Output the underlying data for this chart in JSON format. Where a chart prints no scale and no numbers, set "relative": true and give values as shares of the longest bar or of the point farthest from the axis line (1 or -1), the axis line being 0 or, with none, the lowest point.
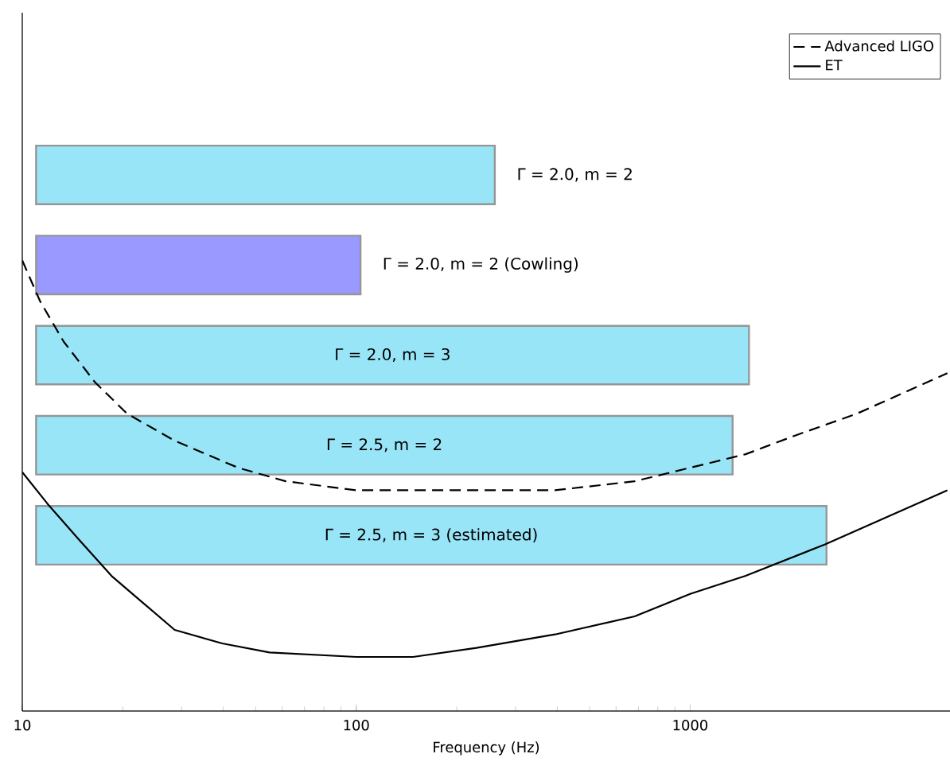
{
  "chart_data": [
    {
      "type": "bar",
      "orientation": "horizontal",
      "log": "x",
      "xlim": [
        10,
        6000
      ],
      "xticks": [
        10,
        100,
        1000
      ],
      "xlabel": "Frequency (Hz)",
      "categories": [
        "Γ = 2.0, m = 2",
        "Γ = 2.0, m = 2 (Cowling)",
        "Γ = 2.0, m = 3",
        "Γ = 2.5, m = 2",
        "Γ = 2.5, m = 3 (estimated)"
      ],
      "base": [
        11,
        11,
        11,
        11,
        11
      ],
      "values": [
        249,
        92,
        1489,
        1329,
        2549
      ],
      "colors": [
        "#99e5f8",
        "#9999ff",
        "#99e5f8",
        "#99e5f8",
        "#99e5f8"
      ]
    },
    {
      "type": "line",
      "relative": true,
      "log": "x",
      "xlim": [
        10,
        6000
      ],
      "tick_labels": false,
      "legend": "top right",
      "series": [
        {
          "name": "Advanced LIGO",
          "color": "#000000",
          "line_style": "dashed",
          "x": [
            10,
            11.3,
            13.3,
            16.5,
            20.6,
            28.6,
            44.3,
            61.5,
            100,
            229,
            394,
            682,
            1000,
            1466,
            2037,
            3155,
            5890
          ],
          "values": [
            1.0,
            0.91,
            0.82,
            0.73,
            0.66,
            0.6,
            0.54,
            0.51,
            0.49,
            0.49,
            0.49,
            0.51,
            0.54,
            0.57,
            0.61,
            0.66,
            0.75
          ]
        },
        {
          "name": "ET",
          "color": "#000000",
          "line_style": "solid",
          "x": [
            10,
            11.9,
            14.8,
            18.5,
            23,
            28.6,
            39.7,
            55,
            100,
            148,
            229,
            394,
            682,
            1000,
            1466,
            2535,
            5890
          ],
          "values": [
            0.53,
            0.46,
            0.38,
            0.3,
            0.24,
            0.18,
            0.15,
            0.13,
            0.12,
            0.12,
            0.14,
            0.17,
            0.21,
            0.26,
            0.3,
            0.37,
            0.49
          ]
        }
      ]
    }
  ]
}
